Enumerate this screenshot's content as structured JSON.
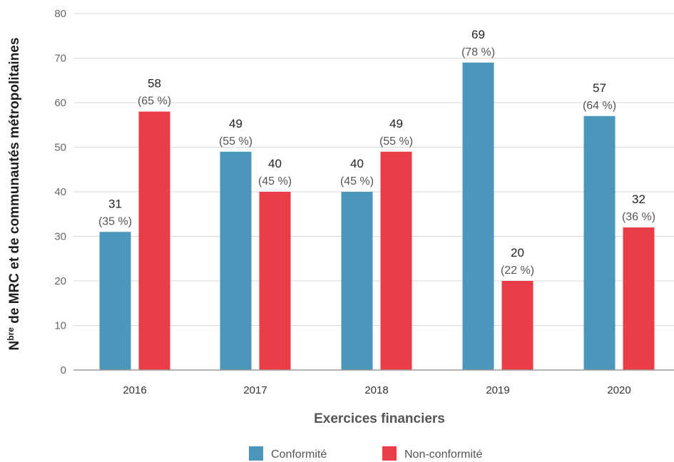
{
  "chart_data": {
    "type": "bar",
    "categories": [
      "2016",
      "2017",
      "2018",
      "2019",
      "2020"
    ],
    "series": [
      {
        "name": "Conformité",
        "color": "#4a97bb",
        "values": [
          31,
          49,
          40,
          69,
          57
        ],
        "percent_labels": [
          "(35 %)",
          "(55 %)",
          "(45 %)",
          "(78 %)",
          "(64 %)"
        ]
      },
      {
        "name": "Non-conformité",
        "color": "#ea3d47",
        "values": [
          58,
          40,
          49,
          20,
          32
        ],
        "percent_labels": [
          "(65 %)",
          "(45 %)",
          "(55 %)",
          "(22 %)",
          "(36 %)"
        ]
      }
    ],
    "xlabel": "Exercices financiers",
    "ylabel_main": "N",
    "ylabel_sup": "bre",
    "ylabel_rest": " de MRC et de communautés métropolitaines",
    "ylim": [
      0,
      80
    ],
    "yticks": [
      0,
      10,
      20,
      30,
      40,
      50,
      60,
      70,
      80
    ],
    "grid": true,
    "legend_position": "bottom-center"
  }
}
